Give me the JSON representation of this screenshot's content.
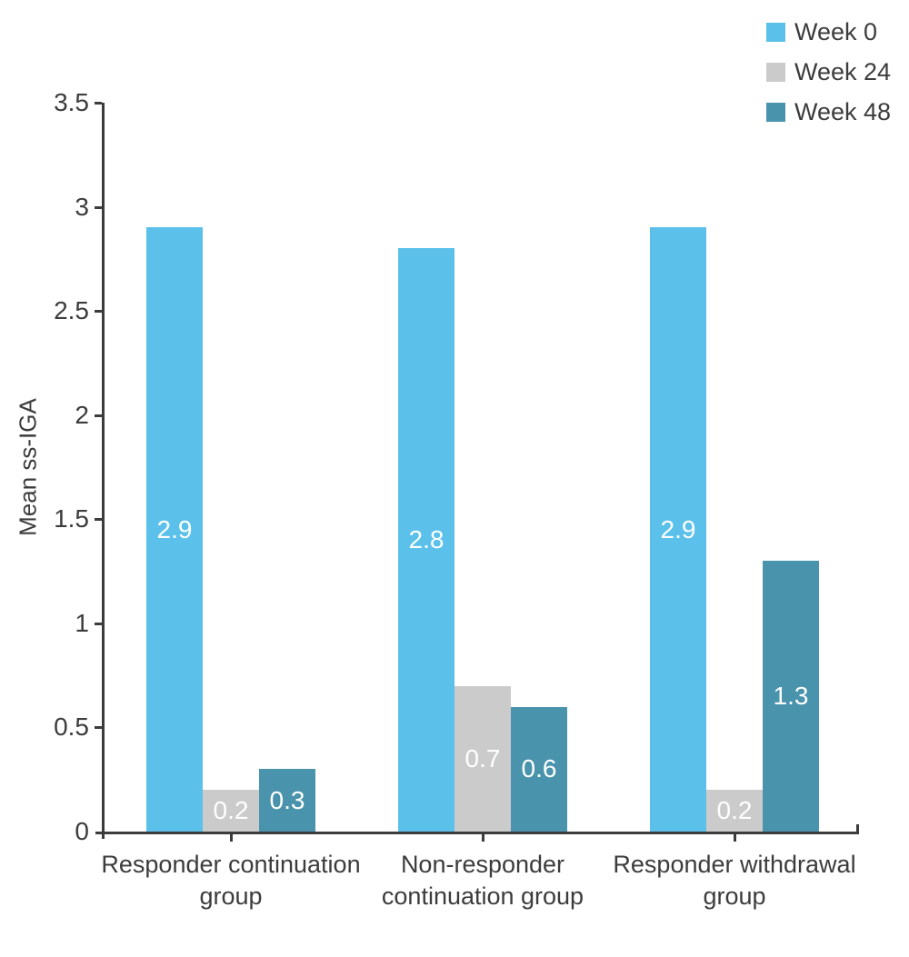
{
  "chart_data": {
    "type": "bar",
    "title": "",
    "ylabel": "Mean ss-IGA",
    "xlabel": "",
    "ylim": [
      0,
      3.5
    ],
    "ytick_step": 0.5,
    "grid": false,
    "legend_position": "top-right",
    "categories": [
      "Responder continuation group",
      "Non-responder continuation group",
      "Responder withdrawal group"
    ],
    "category_label_lines": [
      [
        "Responder continuation",
        "group"
      ],
      [
        "Non-responder",
        "continuation group"
      ],
      [
        "Responder withdrawal",
        "group"
      ]
    ],
    "series": [
      {
        "name": "Week 0",
        "color": "#5BC1EA",
        "values": [
          2.9,
          2.8,
          2.9
        ]
      },
      {
        "name": "Week 24",
        "color": "#CBCBCB",
        "values": [
          0.2,
          0.7,
          0.2
        ]
      },
      {
        "name": "Week 48",
        "color": "#4A93AC",
        "values": [
          0.3,
          0.6,
          1.3
        ]
      }
    ],
    "bar_value_labels": [
      [
        "2.9",
        "2.8",
        "2.9"
      ],
      [
        "0.2",
        "0.7",
        "0.2"
      ],
      [
        "0.3",
        "0.6",
        "1.3"
      ]
    ],
    "bar_label_color": "#FFFFFF",
    "axis_color": "#3C3C3C",
    "text_color": "#3C3C3C",
    "ytick_labels": [
      "0",
      "0.5",
      "1",
      "1.5",
      "2",
      "2.5",
      "3",
      "3.5"
    ]
  }
}
